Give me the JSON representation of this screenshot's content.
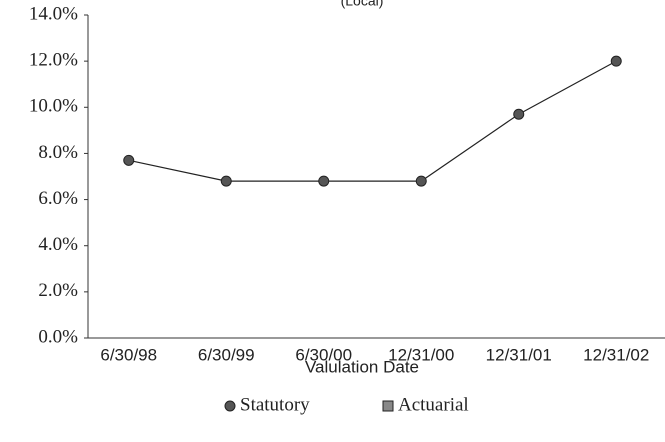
{
  "chart_data": {
    "type": "line",
    "title": "(Local)",
    "x_label": "Valulation Date",
    "categories": [
      "6/30/98",
      "6/30/99",
      "6/30/00",
      "12/31/00",
      "12/31/01",
      "12/31/02"
    ],
    "series": [
      {
        "name": "Statutory",
        "color": "#555555",
        "marker": "circle",
        "values": [
          7.7,
          6.8,
          6.8,
          6.8,
          9.7,
          12.0
        ]
      },
      {
        "name": "Actuarial",
        "color": "#888888",
        "marker": "square",
        "values": [
          null,
          null,
          null,
          null,
          null,
          null
        ]
      }
    ],
    "ylim": [
      0,
      14
    ],
    "yticks": [
      {
        "value": 0,
        "label": "0.0%"
      },
      {
        "value": 2,
        "label": "2.0%"
      },
      {
        "value": 4,
        "label": "4.0%"
      },
      {
        "value": 6,
        "label": "6.0%"
      },
      {
        "value": 8,
        "label": "8.0%"
      },
      {
        "value": 10,
        "label": "10.0%"
      },
      {
        "value": 12,
        "label": "12.0%"
      },
      {
        "value": 14,
        "label": "14.0%"
      }
    ],
    "grid": false,
    "legend": "bottom"
  }
}
